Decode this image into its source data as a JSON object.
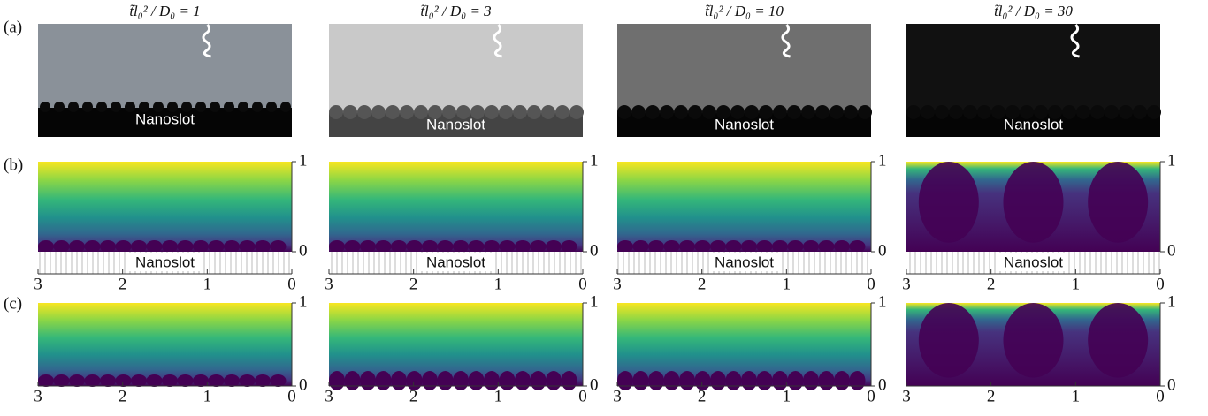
{
  "row_labels": [
    "(a)",
    "(b)",
    "(c)"
  ],
  "column_titles": [
    "t̃l₀² / D₀ = 1",
    "t̃l₀² / D₀ = 3",
    "t̃l₀² / D₀ = 10",
    "t̃l₀² / D₀ = 30"
  ],
  "slot_label": "Nanoslot",
  "x_axis": {
    "xlim": [
      3,
      0
    ],
    "xticks": [
      3,
      2,
      1,
      0
    ]
  },
  "colorbar": {
    "lim": [
      0,
      1
    ],
    "ticks": [
      0,
      1
    ]
  }
}
